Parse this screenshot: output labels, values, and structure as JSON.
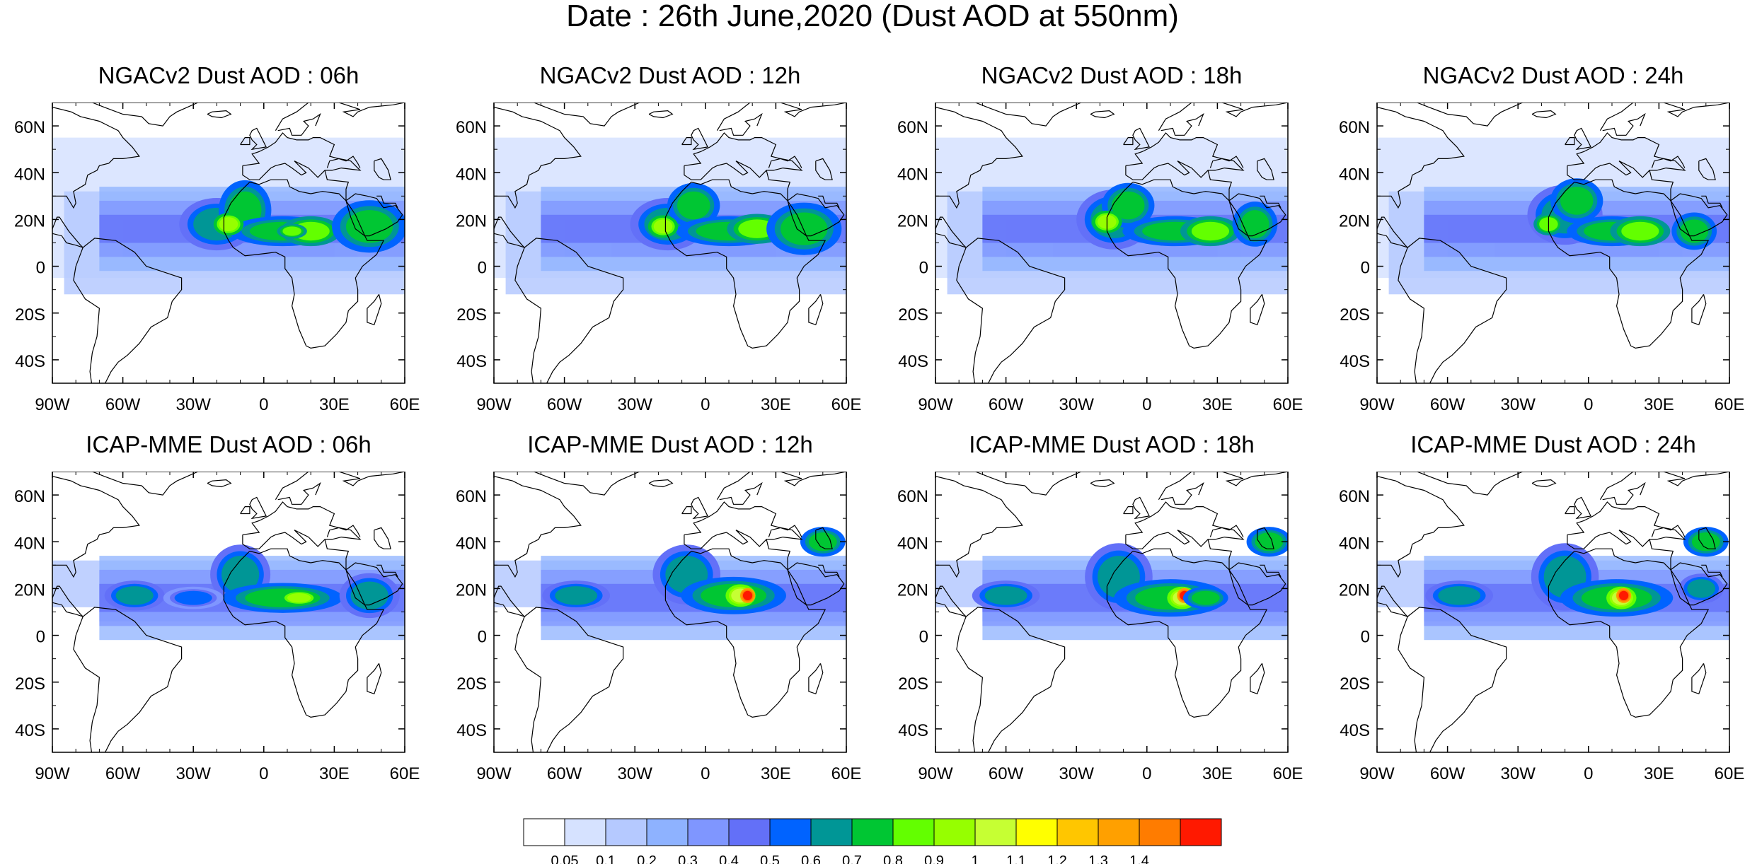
{
  "title": "Date : 26th June,2020 (Dust AOD at 550nm)",
  "axes": {
    "lat_ticks": [
      "60N",
      "40N",
      "20N",
      "0",
      "20S",
      "40S"
    ],
    "lon_ticks": [
      "90W",
      "60W",
      "30W",
      "0",
      "30E",
      "60E"
    ]
  },
  "map_extent": {
    "lon": [
      -90,
      60
    ],
    "lat": [
      -50,
      70
    ]
  },
  "panels": [
    {
      "title": "NGACv2 Dust AOD : 06h",
      "model": "NGACv2",
      "lead": "06h"
    },
    {
      "title": "NGACv2 Dust AOD : 12h",
      "model": "NGACv2",
      "lead": "12h"
    },
    {
      "title": "NGACv2 Dust AOD : 18h",
      "model": "NGACv2",
      "lead": "18h"
    },
    {
      "title": "NGACv2 Dust AOD : 24h",
      "model": "NGACv2",
      "lead": "24h"
    },
    {
      "title": "ICAP-MME Dust AOD : 06h",
      "model": "ICAP-MME",
      "lead": "06h"
    },
    {
      "title": "ICAP-MME Dust AOD : 12h",
      "model": "ICAP-MME",
      "lead": "12h"
    },
    {
      "title": "ICAP-MME Dust AOD : 18h",
      "model": "ICAP-MME",
      "lead": "18h"
    },
    {
      "title": "ICAP-MME Dust AOD : 24h",
      "model": "ICAP-MME",
      "lead": "24h"
    }
  ],
  "colorbar": {
    "labels": [
      "0.05",
      "0.1",
      "0.2",
      "0.3",
      "0.4",
      "0.5",
      "0.6",
      "0.7",
      "0.8",
      "0.9",
      "1",
      "1.1",
      "1.2",
      "1.3",
      "1.4"
    ],
    "colors": [
      "#ffffff",
      "#d6e2ff",
      "#b5c9ff",
      "#8eb2ff",
      "#7f96ff",
      "#6370f8",
      "#0063ff",
      "#009696",
      "#00c633",
      "#63ff00",
      "#96ff00",
      "#c6ff33",
      "#ffff00",
      "#ffc600",
      "#ffa000",
      "#ff7c00",
      "#ff1900"
    ]
  },
  "map_colors": {
    "ocean": "#ffffff",
    "coast": "#000000"
  }
}
